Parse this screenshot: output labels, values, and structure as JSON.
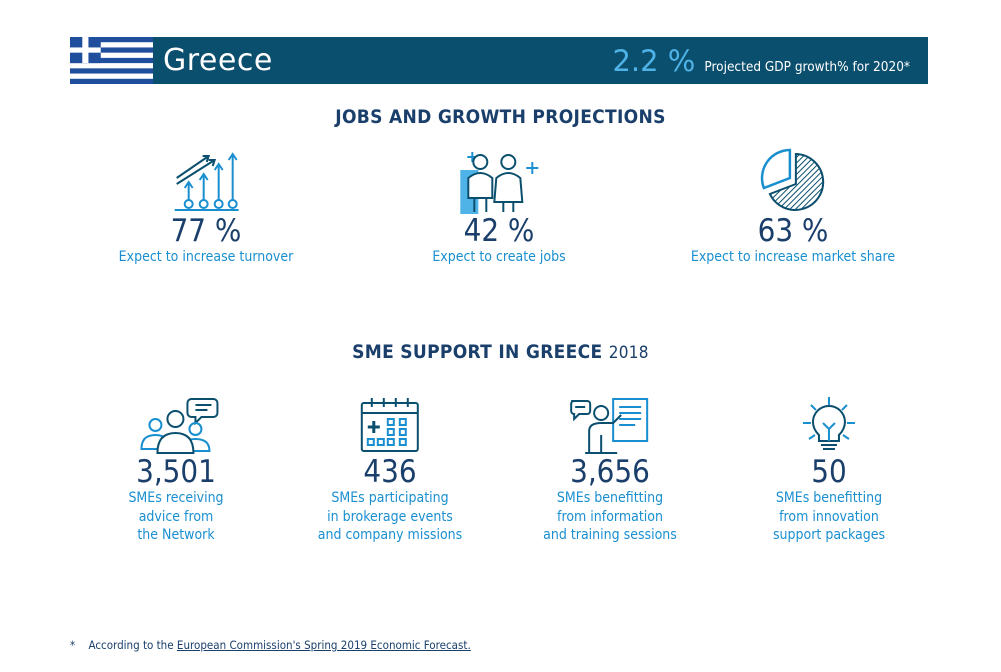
{
  "header": {
    "country": "Greece",
    "gdp_value": "2.2 %",
    "gdp_label": "Projected GDP growth% for 2020*"
  },
  "jobs": {
    "title": "JOBS AND GROWTH PROJECTIONS",
    "items": [
      {
        "value": "77 %",
        "label": "Expect to increase turnover",
        "icon": "growth-arrows-icon"
      },
      {
        "value": "42 %",
        "label": "Expect to create jobs",
        "icon": "people-icon"
      },
      {
        "value": "63 %",
        "label": "Expect to increase market share",
        "icon": "pie-chart-icon"
      }
    ]
  },
  "sme": {
    "title": "SME SUPPORT IN GREECE",
    "year": "2018",
    "items": [
      {
        "value": "3,501",
        "label_lines": [
          "SMEs receiving",
          "advice from",
          "the Network"
        ],
        "icon": "advice-group-icon"
      },
      {
        "value": "436",
        "label_lines": [
          "SMEs participating",
          "in brokerage events",
          "and company missions"
        ],
        "icon": "calendar-icon"
      },
      {
        "value": "3,656",
        "label_lines": [
          "SMEs benefitting",
          "from information",
          "and training sessions"
        ],
        "icon": "presentation-icon"
      },
      {
        "value": "50",
        "label_lines": [
          "SMEs benefitting",
          "from innovation",
          "support packages"
        ],
        "icon": "lightbulb-icon"
      }
    ]
  },
  "footnote": {
    "star": "*",
    "prefix": "According to the",
    "link": "European Commission's Spring 2019 Economic Forecast."
  },
  "colors": {
    "header_bg": "#0b4f6e",
    "accent_light": "#4fb3e8",
    "label_blue": "#1a8fd0",
    "dark_text": "#1a3f6b"
  }
}
